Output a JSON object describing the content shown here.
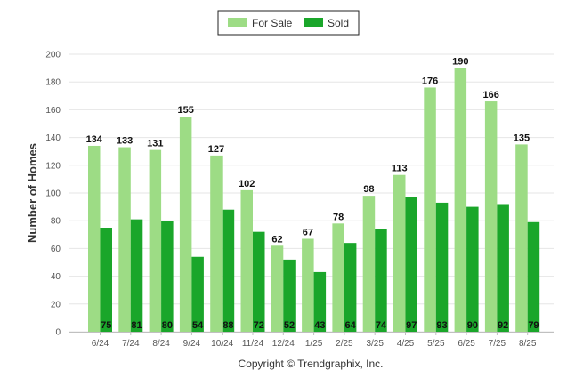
{
  "chart_data": {
    "type": "bar",
    "ylabel": "Number of Homes",
    "xlabel": "",
    "ylim": [
      0,
      200
    ],
    "yticks": [
      0,
      20,
      40,
      60,
      80,
      100,
      120,
      140,
      160,
      180,
      200
    ],
    "grid": true,
    "legend_position": "top-center",
    "categories": [
      "6/24",
      "7/24",
      "8/24",
      "9/24",
      "10/24",
      "11/24",
      "12/24",
      "1/25",
      "2/25",
      "3/25",
      "4/25",
      "5/25",
      "6/25",
      "7/25",
      "8/25"
    ],
    "series": [
      {
        "name": "For Sale",
        "color": "#9ddc85",
        "values": [
          134,
          133,
          131,
          155,
          127,
          102,
          62,
          67,
          78,
          98,
          113,
          176,
          190,
          166,
          135
        ]
      },
      {
        "name": "Sold",
        "color": "#1aa62a",
        "values": [
          75,
          81,
          80,
          54,
          88,
          72,
          52,
          43,
          64,
          74,
          97,
          93,
          90,
          92,
          79
        ]
      }
    ],
    "footer": "Copyright © Trendgraphix, Inc."
  }
}
